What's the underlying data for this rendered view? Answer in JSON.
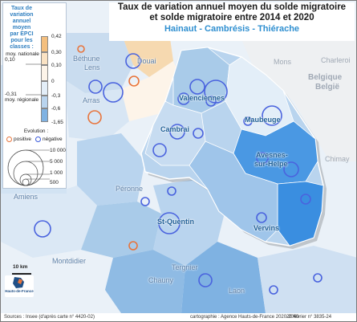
{
  "title_lines": [
    "Taux de variation annuel moyen du solde migratoire",
    "et solde migratoire entre 2014 et 2020"
  ],
  "subtitle": "Hainaut - Cambrésis - Thiérache",
  "legend": {
    "title_lines": [
      "Taux de variation",
      "annuel moyen",
      "par EPCI",
      "pour les classes :"
    ],
    "class_breaks": [
      "0,42",
      "0,30",
      "0,10",
      "0",
      "-0,3",
      "-0,6",
      "-1,65"
    ],
    "class_colors": [
      "#f4bf7e",
      "#fae2c3",
      "#fdf4e9",
      "#e3eef8",
      "#b9d4ee",
      "#7fb2e2",
      "#3a8ee0"
    ],
    "national_label": "moy. nationale",
    "national_value": "0,10",
    "regional_value": "-0,31",
    "regional_label": "moy. régionale",
    "evolution_title": "Evolution :",
    "positive_label": "positive",
    "negative_label": "négative",
    "positive_color": "#e8743b",
    "negative_color": "#3b5bdc",
    "circle_sizes": [
      "10 000",
      "5 000",
      "1 000",
      "500"
    ]
  },
  "places": {
    "bethune": "Béthune",
    "lens": "Lens",
    "douai": "Douai",
    "arras": "Arras",
    "valenciennes": "Valenciennes",
    "cambrai": "Cambrai",
    "maubeuge": "Maubeuge",
    "avesnes_1": "Avesnes-",
    "avesnes_2": "sur-Helpe",
    "peronne": "Péronne",
    "st_quentin": "St-Quentin",
    "vervins": "Vervins",
    "amiens": "Amiens",
    "montdidier": "Montdidier",
    "tergnier": "Tergnier",
    "chauny": "Chauny",
    "laon": "Laon",
    "mons": "Mons",
    "charleroi": "Charleroi",
    "chimay": "Chimay"
  },
  "country_1": "Belgique",
  "country_2": "België",
  "scale_label": "10 km",
  "logo_text": "Hauts-de-France",
  "footer": {
    "sources": "Sources : Insee (d'après carte n° 4420-02)",
    "cartography": "cartographie : Agence Hauts-de-France 2020-2040",
    "date_ref": "20 février n° 3835-24"
  }
}
